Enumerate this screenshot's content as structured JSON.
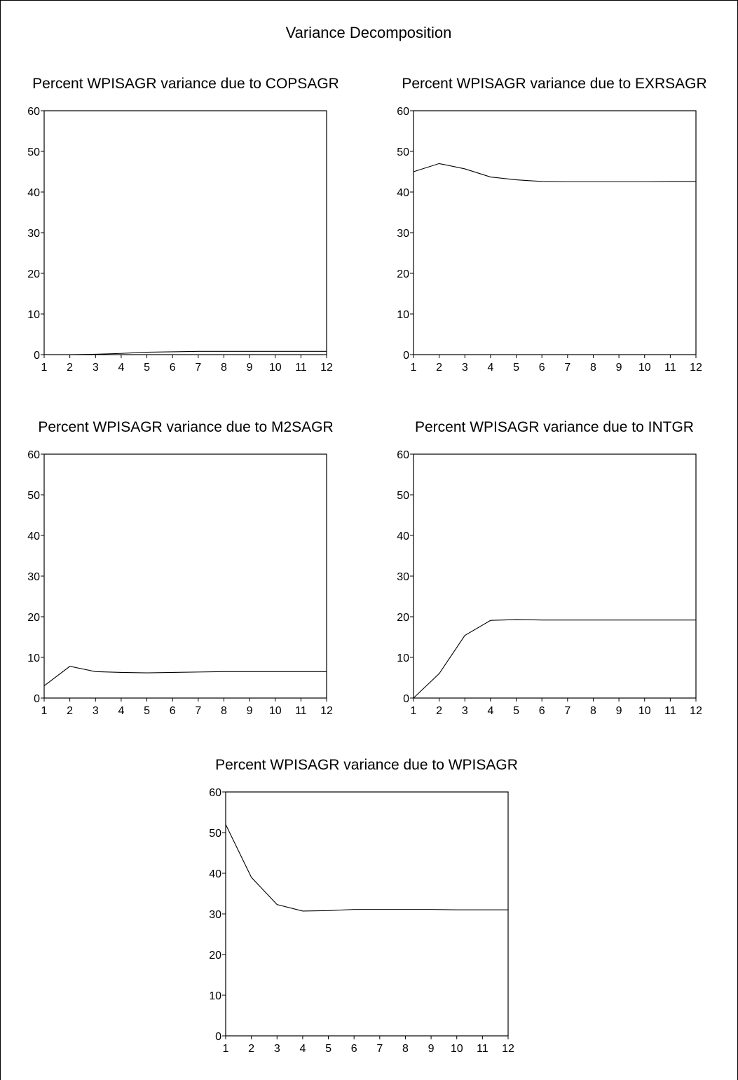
{
  "figure": {
    "title": "Variance Decomposition"
  },
  "chart_data": [
    {
      "type": "line",
      "title": "Percent WPISAGR variance due to COPSAGR",
      "x": [
        1,
        2,
        3,
        4,
        5,
        6,
        7,
        8,
        9,
        10,
        11,
        12
      ],
      "series": [
        {
          "values": [
            0.0,
            0.0,
            0.1,
            0.3,
            0.6,
            0.7,
            0.8,
            0.8,
            0.8,
            0.8,
            0.8,
            0.8
          ]
        }
      ],
      "ylim": [
        0,
        60
      ],
      "yticks": [
        0,
        10,
        20,
        30,
        40,
        50,
        60
      ],
      "xticks": [
        1,
        2,
        3,
        4,
        5,
        6,
        7,
        8,
        9,
        10,
        11,
        12
      ],
      "grid": false
    },
    {
      "type": "line",
      "title": "Percent WPISAGR variance due to EXRSAGR",
      "x": [
        1,
        2,
        3,
        4,
        5,
        6,
        7,
        8,
        9,
        10,
        11,
        12
      ],
      "series": [
        {
          "values": [
            45.0,
            47.0,
            45.7,
            43.7,
            43.0,
            42.6,
            42.5,
            42.5,
            42.5,
            42.5,
            42.6,
            42.6
          ]
        }
      ],
      "ylim": [
        0,
        60
      ],
      "yticks": [
        0,
        10,
        20,
        30,
        40,
        50,
        60
      ],
      "xticks": [
        1,
        2,
        3,
        4,
        5,
        6,
        7,
        8,
        9,
        10,
        11,
        12
      ],
      "grid": false
    },
    {
      "type": "line",
      "title": "Percent WPISAGR variance due to M2SAGR",
      "x": [
        1,
        2,
        3,
        4,
        5,
        6,
        7,
        8,
        9,
        10,
        11,
        12
      ],
      "series": [
        {
          "values": [
            3.0,
            7.8,
            6.5,
            6.3,
            6.2,
            6.3,
            6.4,
            6.5,
            6.5,
            6.5,
            6.5,
            6.5
          ]
        }
      ],
      "ylim": [
        0,
        60
      ],
      "yticks": [
        0,
        10,
        20,
        30,
        40,
        50,
        60
      ],
      "xticks": [
        1,
        2,
        3,
        4,
        5,
        6,
        7,
        8,
        9,
        10,
        11,
        12
      ],
      "grid": false
    },
    {
      "type": "line",
      "title": "Percent WPISAGR variance due to INTGR",
      "x": [
        1,
        2,
        3,
        4,
        5,
        6,
        7,
        8,
        9,
        10,
        11,
        12
      ],
      "series": [
        {
          "values": [
            0.0,
            6.0,
            15.4,
            19.1,
            19.3,
            19.2,
            19.2,
            19.2,
            19.2,
            19.2,
            19.2,
            19.2
          ]
        }
      ],
      "ylim": [
        0,
        60
      ],
      "yticks": [
        0,
        10,
        20,
        30,
        40,
        50,
        60
      ],
      "xticks": [
        1,
        2,
        3,
        4,
        5,
        6,
        7,
        8,
        9,
        10,
        11,
        12
      ],
      "grid": false
    },
    {
      "type": "line",
      "title": "Percent WPISAGR variance due to WPISAGR",
      "x": [
        1,
        2,
        3,
        4,
        5,
        6,
        7,
        8,
        9,
        10,
        11,
        12
      ],
      "series": [
        {
          "values": [
            52.0,
            39.0,
            32.3,
            30.7,
            30.8,
            31.1,
            31.1,
            31.1,
            31.1,
            31.0,
            31.0,
            31.0
          ]
        }
      ],
      "ylim": [
        0,
        60
      ],
      "yticks": [
        0,
        10,
        20,
        30,
        40,
        50,
        60
      ],
      "xticks": [
        1,
        2,
        3,
        4,
        5,
        6,
        7,
        8,
        9,
        10,
        11,
        12
      ],
      "grid": false
    }
  ]
}
